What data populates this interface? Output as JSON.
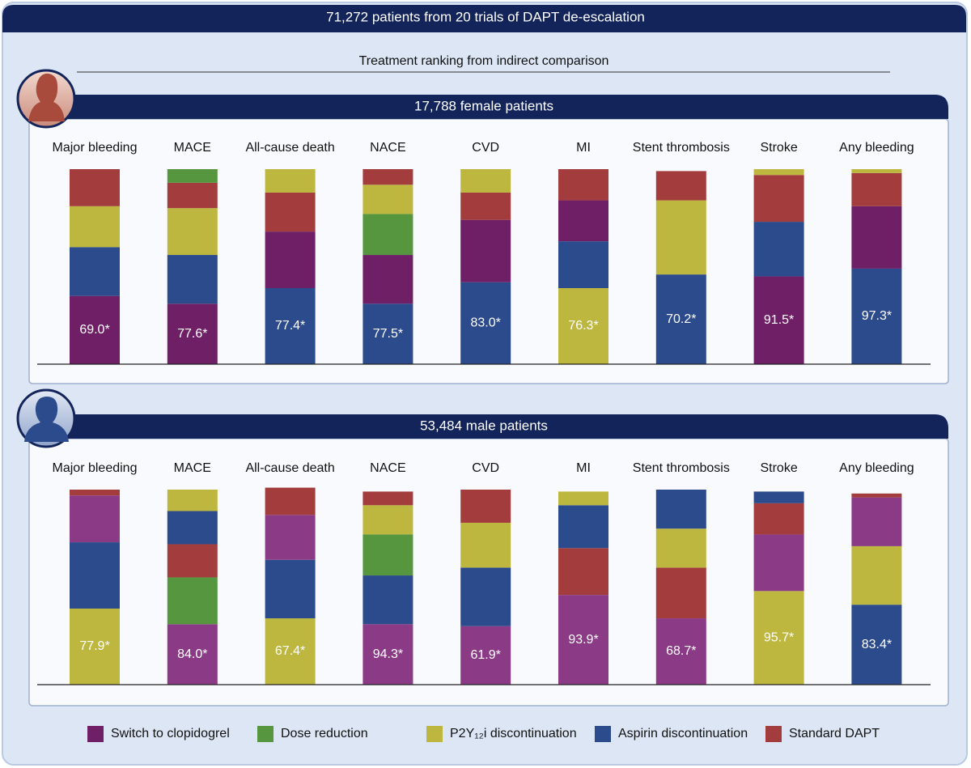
{
  "header": "71,272 patients from 20 trials of DAPT de-escalation",
  "subtitle": "Treatment ranking from indirect comparison",
  "legend": [
    {
      "name": "Switch to clopidogrel",
      "color": "#6e1f66"
    },
    {
      "name": "Dose reduction",
      "color": "#55963f"
    },
    {
      "name": "P2Y₁₂i discontinuation",
      "color": "#bdb73f"
    },
    {
      "name": "Aspirin discontinuation",
      "color": "#2c4b8c"
    },
    {
      "name": "Standard DAPT",
      "color": "#a33d3d"
    }
  ],
  "chart_data": [
    {
      "type": "bar",
      "stacked": true,
      "title": "17,788 female patients",
      "ylim": [
        0,
        100
      ],
      "categories": [
        "Major bleeding",
        "MACE",
        "All-cause death",
        "NACE",
        "CVD",
        "MI",
        "Stent thrombosis",
        "Stroke",
        "Any bleeding"
      ],
      "bars": [
        {
          "label": "69.0*",
          "segments": [
            {
              "value": 35,
              "color": "#6e1f66"
            },
            {
              "value": 25,
              "color": "#2c4b8c"
            },
            {
              "value": 21,
              "color": "#bdb73f"
            },
            {
              "value": 19,
              "color": "#a33d3d"
            }
          ]
        },
        {
          "label": "77.6*",
          "segments": [
            {
              "value": 31,
              "color": "#6e1f66"
            },
            {
              "value": 25,
              "color": "#2c4b8c"
            },
            {
              "value": 24,
              "color": "#bdb73f"
            },
            {
              "value": 13,
              "color": "#a33d3d"
            },
            {
              "value": 7,
              "color": "#55963f"
            }
          ]
        },
        {
          "label": "77.4*",
          "segments": [
            {
              "value": 39,
              "color": "#2c4b8c"
            },
            {
              "value": 29,
              "color": "#6e1f66"
            },
            {
              "value": 20,
              "color": "#a33d3d"
            },
            {
              "value": 12,
              "color": "#bdb73f"
            }
          ]
        },
        {
          "label": "77.5*",
          "segments": [
            {
              "value": 31,
              "color": "#2c4b8c"
            },
            {
              "value": 25,
              "color": "#6e1f66"
            },
            {
              "value": 21,
              "color": "#55963f"
            },
            {
              "value": 15,
              "color": "#bdb73f"
            },
            {
              "value": 8,
              "color": "#a33d3d"
            }
          ]
        },
        {
          "label": "83.0*",
          "segments": [
            {
              "value": 42,
              "color": "#2c4b8c"
            },
            {
              "value": 32,
              "color": "#6e1f66"
            },
            {
              "value": 14,
              "color": "#a33d3d"
            },
            {
              "value": 12,
              "color": "#bdb73f"
            }
          ]
        },
        {
          "label": "76.3*",
          "segments": [
            {
              "value": 39,
              "color": "#bdb73f"
            },
            {
              "value": 24,
              "color": "#2c4b8c"
            },
            {
              "value": 21,
              "color": "#6e1f66"
            },
            {
              "value": 16,
              "color": "#a33d3d"
            }
          ]
        },
        {
          "label": "70.2*",
          "segments": [
            {
              "value": 46,
              "color": "#2c4b8c"
            },
            {
              "value": 38,
              "color": "#bdb73f"
            },
            {
              "value": 15,
              "color": "#a33d3d"
            }
          ]
        },
        {
          "label": "91.5*",
          "segments": [
            {
              "value": 45,
              "color": "#6e1f66"
            },
            {
              "value": 28,
              "color": "#2c4b8c"
            },
            {
              "value": 24,
              "color": "#a33d3d"
            },
            {
              "value": 3,
              "color": "#bdb73f"
            }
          ]
        },
        {
          "label": "97.3*",
          "segments": [
            {
              "value": 49,
              "color": "#2c4b8c"
            },
            {
              "value": 32,
              "color": "#6e1f66"
            },
            {
              "value": 17,
              "color": "#a33d3d"
            },
            {
              "value": 2,
              "color": "#bdb73f"
            }
          ]
        }
      ]
    },
    {
      "type": "bar",
      "stacked": true,
      "title": "53,484 male patients",
      "ylim": [
        0,
        100
      ],
      "categories": [
        "Major bleeding",
        "MACE",
        "All-cause death",
        "NACE",
        "CVD",
        "MI",
        "Stent thrombosis",
        "Stroke",
        "Any bleeding"
      ],
      "bars": [
        {
          "label": "77.9*",
          "segments": [
            {
              "value": 39,
              "color": "#bdb73f"
            },
            {
              "value": 34,
              "color": "#2c4b8c"
            },
            {
              "value": 24,
              "color": "#8b3a86"
            },
            {
              "value": 3,
              "color": "#a33d3d"
            }
          ]
        },
        {
          "label": "84.0*",
          "segments": [
            {
              "value": 31,
              "color": "#8b3a86"
            },
            {
              "value": 24,
              "color": "#55963f"
            },
            {
              "value": 17,
              "color": "#a33d3d"
            },
            {
              "value": 17,
              "color": "#2c4b8c"
            },
            {
              "value": 11,
              "color": "#bdb73f"
            }
          ]
        },
        {
          "label": "67.4*",
          "segments": [
            {
              "value": 34,
              "color": "#bdb73f"
            },
            {
              "value": 30,
              "color": "#2c4b8c"
            },
            {
              "value": 23,
              "color": "#8b3a86"
            },
            {
              "value": 14,
              "color": "#a33d3d"
            }
          ]
        },
        {
          "label": "94.3*",
          "segments": [
            {
              "value": 31,
              "color": "#8b3a86"
            },
            {
              "value": 25,
              "color": "#2c4b8c"
            },
            {
              "value": 21,
              "color": "#55963f"
            },
            {
              "value": 15,
              "color": "#bdb73f"
            },
            {
              "value": 7,
              "color": "#a33d3d"
            }
          ]
        },
        {
          "label": "61.9*",
          "segments": [
            {
              "value": 30,
              "color": "#8b3a86"
            },
            {
              "value": 30,
              "color": "#2c4b8c"
            },
            {
              "value": 23,
              "color": "#bdb73f"
            },
            {
              "value": 17,
              "color": "#a33d3d"
            }
          ]
        },
        {
          "label": "93.9*",
          "segments": [
            {
              "value": 46,
              "color": "#8b3a86"
            },
            {
              "value": 24,
              "color": "#a33d3d"
            },
            {
              "value": 22,
              "color": "#2c4b8c"
            },
            {
              "value": 7,
              "color": "#bdb73f"
            }
          ]
        },
        {
          "label": "68.7*",
          "segments": [
            {
              "value": 34,
              "color": "#8b3a86"
            },
            {
              "value": 26,
              "color": "#a33d3d"
            },
            {
              "value": 20,
              "color": "#bdb73f"
            },
            {
              "value": 20,
              "color": "#2c4b8c"
            }
          ]
        },
        {
          "label": "95.7*",
          "segments": [
            {
              "value": 48,
              "color": "#bdb73f"
            },
            {
              "value": 29,
              "color": "#8b3a86"
            },
            {
              "value": 16,
              "color": "#a33d3d"
            },
            {
              "value": 6,
              "color": "#2c4b8c"
            }
          ]
        },
        {
          "label": "83.4*",
          "segments": [
            {
              "value": 41,
              "color": "#2c4b8c"
            },
            {
              "value": 30,
              "color": "#bdb73f"
            },
            {
              "value": 25,
              "color": "#8b3a86"
            },
            {
              "value": 2,
              "color": "#a33d3d"
            }
          ]
        }
      ]
    }
  ]
}
